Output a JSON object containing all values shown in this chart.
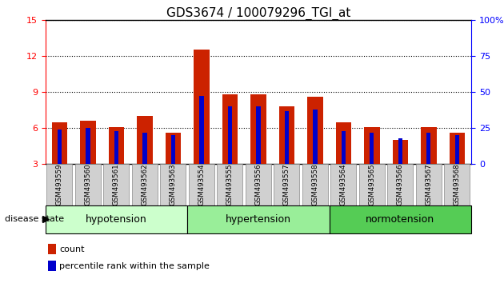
{
  "title": "GDS3674 / 100079296_TGI_at",
  "samples": [
    "GSM493559",
    "GSM493560",
    "GSM493561",
    "GSM493562",
    "GSM493563",
    "GSM493554",
    "GSM493555",
    "GSM493556",
    "GSM493557",
    "GSM493558",
    "GSM493564",
    "GSM493565",
    "GSM493566",
    "GSM493567",
    "GSM493568"
  ],
  "count_values": [
    6.5,
    6.6,
    6.1,
    7.0,
    5.6,
    12.5,
    8.8,
    8.8,
    7.8,
    8.6,
    6.5,
    6.1,
    5.0,
    6.1,
    5.6
  ],
  "percentile_values": [
    24,
    25,
    23,
    22,
    20,
    47,
    40,
    40,
    37,
    38,
    23,
    22,
    18,
    22,
    20
  ],
  "groups": [
    {
      "label": "hypotension",
      "start": 0,
      "end": 5,
      "color": "#ccffcc"
    },
    {
      "label": "hypertension",
      "start": 5,
      "end": 10,
      "color": "#99ee99"
    },
    {
      "label": "normotension",
      "start": 10,
      "end": 15,
      "color": "#55cc55"
    }
  ],
  "ylim_left": [
    3,
    15
  ],
  "ylim_right": [
    0,
    100
  ],
  "yticks_left": [
    3,
    6,
    9,
    12,
    15
  ],
  "yticks_right": [
    0,
    25,
    50,
    75,
    100
  ],
  "red_color": "#cc2200",
  "blue_color": "#0000cc",
  "grid_color": "#000000",
  "group_label_fontsize": 9,
  "title_fontsize": 11
}
